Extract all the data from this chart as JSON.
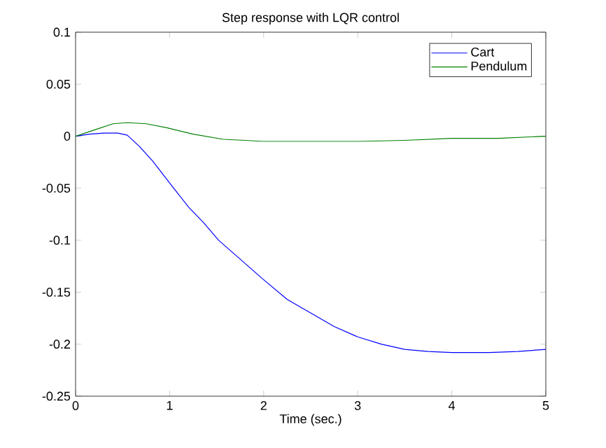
{
  "chart_data": {
    "type": "line",
    "title": "Step response with LQR control",
    "xlabel": "Time (sec.)",
    "xlim": [
      0,
      5
    ],
    "ylim": [
      -0.25,
      0.1
    ],
    "xticks": [
      0,
      1,
      2,
      3,
      4,
      5
    ],
    "yticks": [
      -0.25,
      -0.2,
      -0.15,
      -0.1,
      -0.05,
      0,
      0.05,
      0.1
    ],
    "legend": "top right",
    "grid": false,
    "series": [
      {
        "name": "Cart",
        "color": "#0000ff",
        "x": [
          0,
          0.15,
          0.3,
          0.45,
          0.55,
          0.68,
          0.82,
          1.0,
          1.2,
          1.37,
          1.52,
          2.0,
          2.25,
          2.5,
          2.75,
          3.0,
          3.25,
          3.5,
          3.75,
          4.0,
          4.4,
          4.7,
          5.0
        ],
        "values": [
          0,
          0.002,
          0.003,
          0.003,
          0.001,
          -0.01,
          -0.024,
          -0.045,
          -0.068,
          -0.084,
          -0.1,
          -0.138,
          -0.157,
          -0.17,
          -0.183,
          -0.193,
          -0.2,
          -0.205,
          -0.207,
          -0.208,
          -0.208,
          -0.207,
          -0.205
        ]
      },
      {
        "name": "Pendulum",
        "color": "#008000",
        "x": [
          0,
          0.2,
          0.4,
          0.55,
          0.75,
          0.975,
          1.25,
          1.57,
          1.8,
          2.0,
          2.5,
          3.0,
          3.5,
          4.0,
          4.5,
          5.0
        ],
        "values": [
          0,
          0.006,
          0.012,
          0.013,
          0.012,
          0.008,
          0.002,
          -0.003,
          -0.004,
          -0.005,
          -0.005,
          -0.005,
          -0.004,
          -0.002,
          -0.002,
          0
        ]
      }
    ]
  }
}
